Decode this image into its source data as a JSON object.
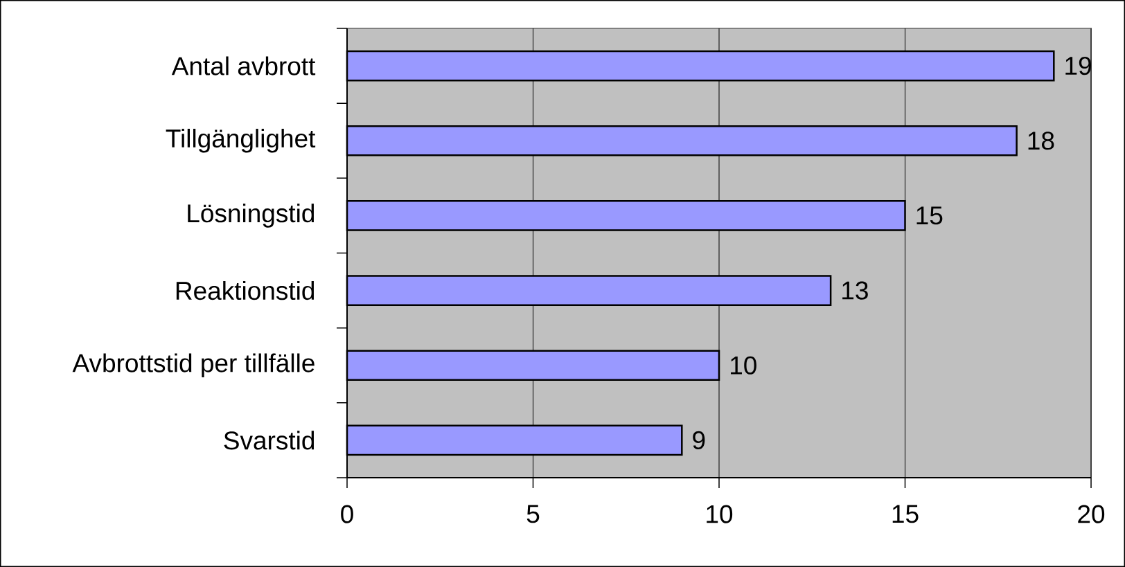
{
  "chart_data": {
    "type": "bar",
    "orientation": "horizontal",
    "categories": [
      "Antal avbrott",
      "Tillgänglighet",
      "Lösningstid",
      "Reaktionstid",
      "Avbrottstid per tillfälle",
      "Svarstid"
    ],
    "values": [
      19,
      18,
      15,
      13,
      10,
      9
    ],
    "color": "#9999ff",
    "xlim": [
      0,
      20
    ],
    "xticks": [
      0,
      5,
      10,
      15,
      20
    ],
    "grid": "x",
    "data_labels": true
  }
}
